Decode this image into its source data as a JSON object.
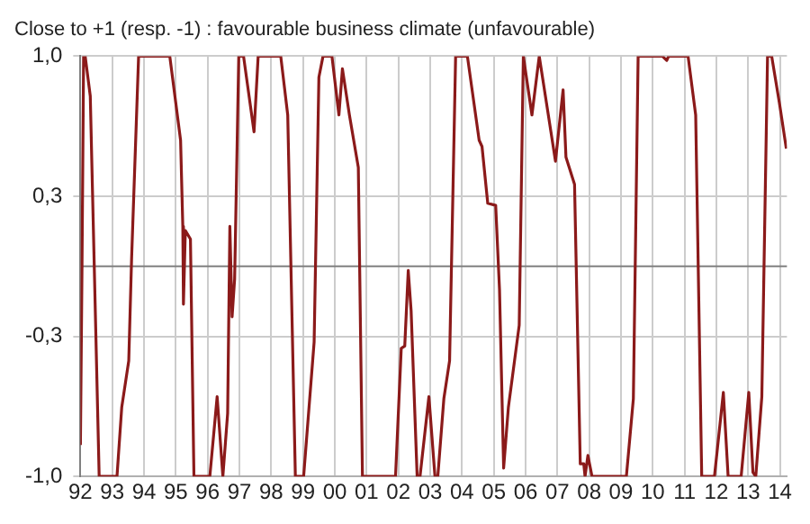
{
  "chart_data": {
    "type": "line",
    "title": "Close to +1 (resp. -1) : favourable business climate (unfavourable)",
    "x": [
      1992.0,
      1992.05,
      1992.1,
      1992.15,
      1992.31,
      1992.59,
      1993.15,
      1993.3,
      1993.52,
      1993.61,
      1993.83,
      1994.81,
      1995.15,
      1995.22,
      1995.24,
      1995.3,
      1995.46,
      1995.57,
      1996.07,
      1996.3,
      1996.48,
      1996.63,
      1996.7,
      1996.77,
      1996.85,
      1996.98,
      1997.13,
      1997.46,
      1997.59,
      1998.3,
      1998.52,
      1998.76,
      1999.02,
      1999.35,
      1999.5,
      1999.63,
      1999.91,
      2000.13,
      2000.24,
      2000.46,
      2000.74,
      2000.87,
      2001.91,
      2002.09,
      2002.2,
      2002.31,
      2002.4,
      2002.59,
      2002.68,
      2002.96,
      2003.15,
      2003.24,
      2003.43,
      2003.61,
      2003.8,
      2004.17,
      2004.54,
      2004.63,
      2004.81,
      2005.06,
      2005.18,
      2005.31,
      2005.46,
      2005.8,
      2005.93,
      2006.2,
      2006.43,
      2006.94,
      2007.18,
      2007.27,
      2007.54,
      2007.72,
      2007.83,
      2007.87,
      2007.96,
      2008.09,
      2009.17,
      2009.39,
      2009.54,
      2010.3,
      2010.44,
      2010.5,
      2011.11,
      2011.35,
      2011.54,
      2011.94,
      2012.22,
      2012.37,
      2012.78,
      2013.02,
      2013.15,
      2013.24,
      2013.43,
      2013.61,
      2013.74,
      2013.98,
      2014.2
    ],
    "series": [
      {
        "color": "#8b1a1a",
        "values": [
          -0.85,
          0.0,
          1.0,
          1.0,
          0.81,
          -1.0,
          -1.0,
          -0.67,
          -0.45,
          0.04,
          1.0,
          1.0,
          0.6,
          0.19,
          -0.18,
          0.17,
          0.13,
          -1.0,
          -1.0,
          -0.62,
          -1.0,
          -0.7,
          0.19,
          -0.24,
          -0.06,
          1.0,
          1.0,
          0.64,
          1.0,
          1.0,
          0.72,
          -1.0,
          -1.0,
          -0.36,
          0.9,
          1.0,
          1.0,
          0.72,
          0.94,
          0.72,
          0.47,
          -1.0,
          -1.0,
          -0.39,
          -0.38,
          -0.02,
          -0.21,
          -1.0,
          -1.0,
          -0.62,
          -1.0,
          -1.0,
          -0.63,
          -0.45,
          1.0,
          1.0,
          0.6,
          0.57,
          0.3,
          0.29,
          -0.11,
          -0.96,
          -0.67,
          -0.28,
          1.0,
          0.72,
          1.0,
          0.5,
          0.84,
          0.52,
          0.39,
          -0.94,
          -0.94,
          -1.0,
          -0.9,
          -1.0,
          -1.0,
          -0.63,
          1.0,
          1.0,
          0.98,
          1.0,
          1.0,
          0.72,
          -1.0,
          -1.0,
          -0.6,
          -1.0,
          -1.0,
          -0.6,
          -0.98,
          -1.0,
          -0.62,
          1.0,
          1.0,
          0.78,
          0.56
        ]
      }
    ],
    "xlim": [
      1992,
      2014.22
    ],
    "xticks": [
      {
        "value": 1992,
        "label": "92"
      },
      {
        "value": 1993,
        "label": "93"
      },
      {
        "value": 1994,
        "label": "94"
      },
      {
        "value": 1995,
        "label": "95"
      },
      {
        "value": 1996,
        "label": "96"
      },
      {
        "value": 1997,
        "label": "97"
      },
      {
        "value": 1998,
        "label": "98"
      },
      {
        "value": 1999,
        "label": "99"
      },
      {
        "value": 2000,
        "label": "00"
      },
      {
        "value": 2001,
        "label": "01"
      },
      {
        "value": 2002,
        "label": "02"
      },
      {
        "value": 2003,
        "label": "03"
      },
      {
        "value": 2004,
        "label": "04"
      },
      {
        "value": 2005,
        "label": "05"
      },
      {
        "value": 2006,
        "label": "06"
      },
      {
        "value": 2007,
        "label": "07"
      },
      {
        "value": 2008,
        "label": "08"
      },
      {
        "value": 2009,
        "label": "09"
      },
      {
        "value": 2010,
        "label": "10"
      },
      {
        "value": 2011,
        "label": "11"
      },
      {
        "value": 2012,
        "label": "12"
      },
      {
        "value": 2013,
        "label": "13"
      },
      {
        "value": 2014,
        "label": "14"
      }
    ],
    "ylim": [
      -1,
      1
    ],
    "yticks": [
      {
        "value": -1,
        "label": "-1,0"
      },
      {
        "value": -0.333,
        "label": "-0,3"
      },
      {
        "value": 0.333,
        "label": "0,3"
      },
      {
        "value": 1,
        "label": "1,0"
      }
    ],
    "ref_lines": [
      {
        "axis": "y",
        "value": 0,
        "color": "#808080"
      }
    ],
    "grid": true,
    "legend": false,
    "marker": "none",
    "line_style": "solid"
  }
}
